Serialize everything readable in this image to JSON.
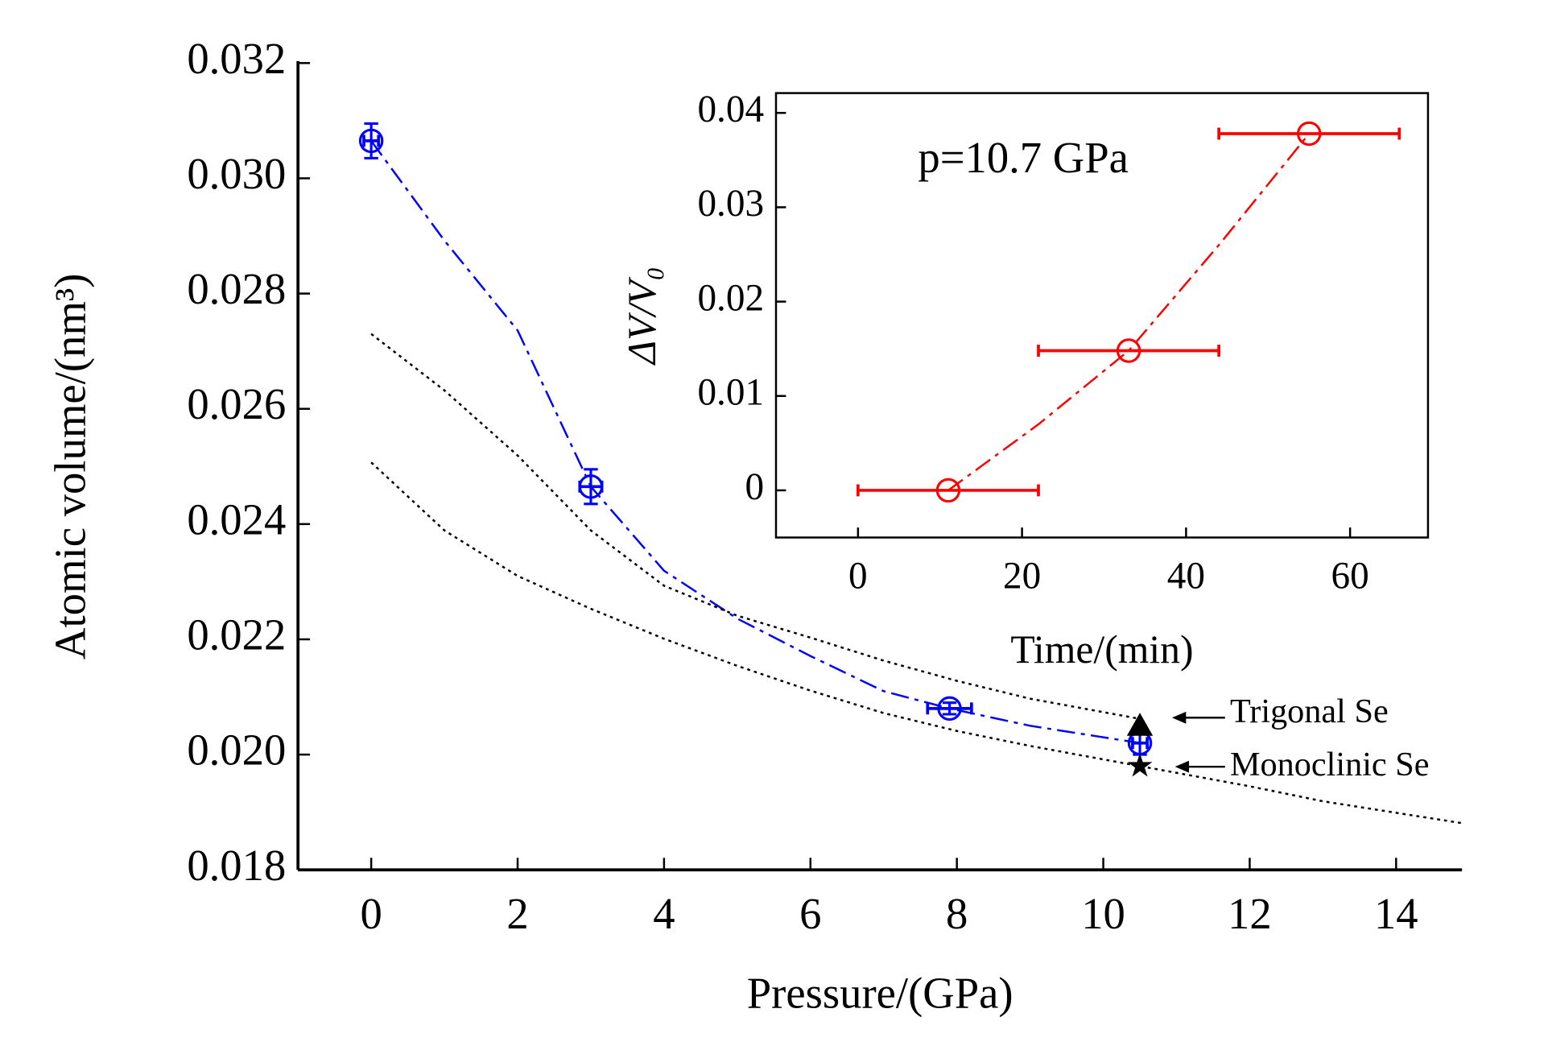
{
  "chart_data": [
    {
      "type": "scatter",
      "xlabel": "Pressure/(GPa)",
      "ylabel": "Atomic volume/(nm³)",
      "xlim": [
        -1,
        14.9
      ],
      "ylim": [
        0.018,
        0.032
      ],
      "xticks": [
        0,
        2,
        4,
        6,
        8,
        10,
        12,
        14
      ],
      "yticks": [
        0.018,
        {
          "value": 0.02,
          "label": "0.020"
        },
        0.022,
        0.024,
        0.026,
        0.028,
        {
          "value": 0.03,
          "label": "0.030"
        },
        0.032
      ],
      "series": [
        {
          "color": "#0000ff",
          "style": "dashed",
          "x": [
            0,
            1,
            2,
            3,
            4,
            5,
            6,
            7,
            7.9,
            9,
            10.5
          ],
          "values": [
            0.03065,
            0.02892,
            0.02736,
            0.02465,
            0.02319,
            0.02236,
            0.02171,
            0.0211,
            0.0208,
            0.0205,
            0.0202
          ]
        },
        {
          "color": "#000000",
          "style": "dotted",
          "x": [
            0,
            1,
            2,
            3,
            4,
            5,
            6,
            7,
            8,
            9,
            10.5
          ],
          "values": [
            0.0273,
            0.02632,
            0.02519,
            0.02389,
            0.02293,
            0.02241,
            0.02203,
            0.02163,
            0.02128,
            0.02097,
            0.02062
          ]
        },
        {
          "color": "#000000",
          "style": "dotted",
          "x": [
            0,
            1,
            2,
            3,
            4,
            5,
            6,
            7,
            8,
            9,
            10.5,
            12,
            13,
            14.9
          ],
          "values": [
            0.02507,
            0.02389,
            0.0231,
            0.02253,
            0.02201,
            0.02154,
            0.02111,
            0.02072,
            0.02041,
            0.02015,
            0.0198,
            0.01945,
            0.01919,
            0.01881
          ]
        },
        {
          "color": "#0000ff",
          "marker": "circle",
          "x": [
            0,
            3,
            7.9,
            10.5
          ],
          "values": [
            0.03065,
            0.02465,
            0.0208,
            0.0202
          ],
          "yerr": [
            0.0003,
            0.0003,
            0.0001,
            0.0002
          ],
          "xerr": [
            0.1,
            0.15,
            0.3,
            0.1
          ]
        },
        {
          "color": "#000000",
          "marker": "triangle",
          "x": [
            10.5
          ],
          "values": [
            0.0205
          ]
        },
        {
          "color": "#000000",
          "marker": "star",
          "x": [
            10.5
          ],
          "values": [
            0.0198
          ]
        }
      ],
      "annotations": [
        "Trigonal Se",
        "Monoclinic Se"
      ]
    },
    {
      "type": "scatter",
      "xlabel": "Time/(min)",
      "ylabel": "ΔV/V₀",
      "xlim": [
        -10,
        69.5
      ],
      "ylim": [
        -0.005,
        0.0421
      ],
      "xticks": [
        0,
        20,
        40,
        60
      ],
      "yticks": [
        0,
        0.01,
        0.02,
        0.03,
        0.04
      ],
      "series": [
        {
          "color": "#ff0000",
          "style": "dashed",
          "x": [
            11,
            22,
            33,
            44,
            55
          ],
          "values": [
            0,
            0.007,
            0.0148,
            0.026,
            0.0378
          ]
        },
        {
          "color": "#ff0000",
          "marker": "circle",
          "x": [
            11,
            33,
            55
          ],
          "values": [
            0,
            0.0148,
            0.0378
          ],
          "xerr": [
            11,
            11,
            11
          ]
        }
      ],
      "annotations": [
        "p=10.7 GPa"
      ]
    }
  ]
}
